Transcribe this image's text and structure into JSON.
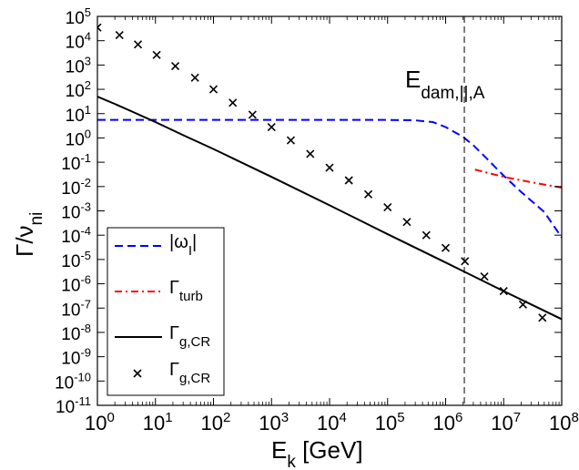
{
  "chart_data": {
    "type": "line",
    "xscale": "log",
    "yscale": "log",
    "xlim": [
      1,
      100000000
    ],
    "ylim": [
      1e-11,
      100000
    ],
    "xlabel": {
      "main": "E",
      "sub": "k",
      "tail": " [GeV]"
    },
    "ylabel": {
      "main": "Γ/ν",
      "sub": "ni"
    },
    "grid": false,
    "legend_position": "bottom-left",
    "x_tick_labels": [
      {
        "x": 1,
        "base": "10",
        "exp": "0"
      },
      {
        "x": 10,
        "base": "10",
        "exp": "1"
      },
      {
        "x": 100,
        "base": "10",
        "exp": "2"
      },
      {
        "x": 1000,
        "base": "10",
        "exp": "3"
      },
      {
        "x": 10000,
        "base": "10",
        "exp": "4"
      },
      {
        "x": 100000,
        "base": "10",
        "exp": "5"
      },
      {
        "x": 1000000,
        "base": "10",
        "exp": "6"
      },
      {
        "x": 10000000,
        "base": "10",
        "exp": "7"
      },
      {
        "x": 100000000,
        "base": "10",
        "exp": "8"
      }
    ],
    "y_tick_labels": [
      {
        "y": 100000,
        "base": "10",
        "exp": "5"
      },
      {
        "y": 10000,
        "base": "10",
        "exp": "4"
      },
      {
        "y": 1000,
        "base": "10",
        "exp": "3"
      },
      {
        "y": 100,
        "base": "10",
        "exp": "2"
      },
      {
        "y": 10,
        "base": "10",
        "exp": "1"
      },
      {
        "y": 1,
        "base": "10",
        "exp": "0"
      },
      {
        "y": 0.1,
        "base": "10",
        "exp": "-1"
      },
      {
        "y": 0.01,
        "base": "10",
        "exp": "-2"
      },
      {
        "y": 0.001,
        "base": "10",
        "exp": "-3"
      },
      {
        "y": 0.0001,
        "base": "10",
        "exp": "-4"
      },
      {
        "y": 1e-05,
        "base": "10",
        "exp": "-5"
      },
      {
        "y": 1e-06,
        "base": "10",
        "exp": "-6"
      },
      {
        "y": 1e-07,
        "base": "10",
        "exp": "-7"
      },
      {
        "y": 1e-08,
        "base": "10",
        "exp": "-8"
      },
      {
        "y": 1e-09,
        "base": "10",
        "exp": "-9"
      },
      {
        "y": 1e-10,
        "base": "10",
        "exp": "-10"
      },
      {
        "y": 1e-11,
        "base": "10",
        "exp": "-11"
      }
    ],
    "vertical_line": {
      "x": 2100000,
      "color": "#000000",
      "label": {
        "main": "E",
        "sub": "dam,||,A"
      }
    },
    "series": [
      {
        "name": {
          "main": "|ω",
          "sub": "I",
          "tail": "|"
        },
        "style": "dashed",
        "color": "#0000ff",
        "points": [
          [
            1,
            5.5
          ],
          [
            10,
            5.5
          ],
          [
            100,
            5.5
          ],
          [
            1000,
            5.5
          ],
          [
            10000,
            5.5
          ],
          [
            100000,
            5.5
          ],
          [
            300000,
            5.3
          ],
          [
            600000,
            4.5
          ],
          [
            1000000,
            2.8
          ],
          [
            2000000,
            1.1
          ],
          [
            3000000,
            0.5
          ],
          [
            5000000,
            0.15
          ],
          [
            10000000,
            0.028
          ],
          [
            20000000,
            0.006
          ],
          [
            50000000,
            0.0009
          ],
          [
            100000000,
            8e-05
          ]
        ]
      },
      {
        "name": {
          "main": "Γ",
          "sub": "turb",
          "tail": ""
        },
        "style": "dashdot",
        "color": "#ff0000",
        "points": [
          [
            3200000,
            0.05
          ],
          [
            10000000,
            0.025
          ],
          [
            30000000,
            0.015
          ],
          [
            100000000,
            0.009
          ]
        ]
      },
      {
        "name": {
          "main": "Γ",
          "sub": "g,CR",
          "tail": ""
        },
        "style": "solid",
        "color": "#000000",
        "points": [
          [
            1,
            50
          ],
          [
            2,
            25
          ],
          [
            4,
            12
          ],
          [
            10,
            4.5
          ],
          [
            30,
            1.3
          ],
          [
            100,
            0.35
          ],
          [
            1000,
            0.025
          ],
          [
            10000,
            0.0017
          ],
          [
            100000,
            0.00011
          ],
          [
            1000000,
            7.5e-06
          ],
          [
            10000000,
            5e-07
          ],
          [
            100000000,
            3.5e-08
          ]
        ]
      },
      {
        "name": {
          "main": "Γ",
          "sub": "g,CR",
          "tail": ""
        },
        "style": "markers-x",
        "color": "#000000",
        "points": [
          [
            1,
            35000
          ],
          [
            2.4,
            17000
          ],
          [
            5,
            7000
          ],
          [
            10.5,
            2600
          ],
          [
            22,
            900
          ],
          [
            48,
            300
          ],
          [
            100,
            100
          ],
          [
            215,
            28
          ],
          [
            470,
            9
          ],
          [
            1000,
            2.8
          ],
          [
            2150,
            0.8
          ],
          [
            4650,
            0.22
          ],
          [
            10000,
            0.06
          ],
          [
            21500,
            0.018
          ],
          [
            46500,
            0.0048
          ],
          [
            100000,
            0.0014
          ],
          [
            215000,
            0.00035
          ],
          [
            465000,
            0.0001
          ],
          [
            1000000,
            3e-05
          ],
          [
            2150000,
            8.5e-06
          ],
          [
            4650000,
            2e-06
          ],
          [
            10000000,
            5e-07
          ],
          [
            21500000,
            1.4e-07
          ],
          [
            46500000,
            4e-08
          ]
        ]
      }
    ]
  }
}
